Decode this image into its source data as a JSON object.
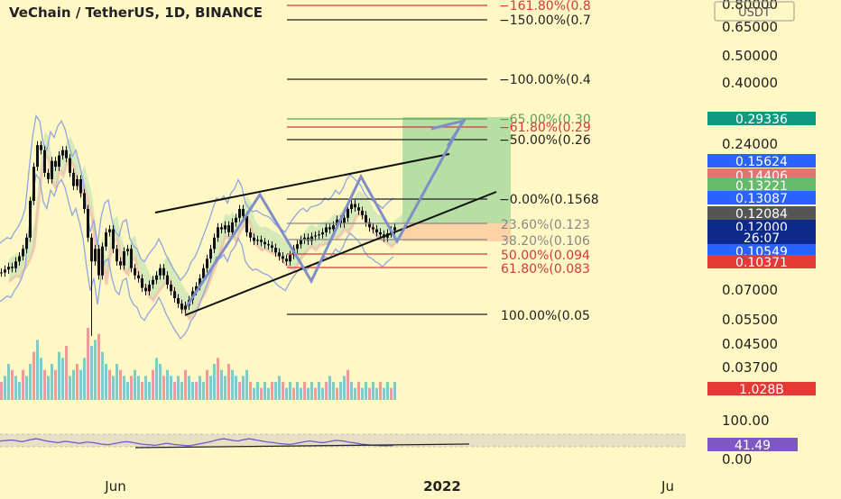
{
  "header": {
    "title": "VeChain / TetherUS, 1D, BINANCE",
    "quote_currency": "USDT"
  },
  "colors": {
    "background": "#fff8c4",
    "candle": "#111111",
    "bb": "#8fa6e0",
    "cloud_green": "#b5dfb0",
    "cloud_red": "#f2b8a8",
    "target_zone": "#9fd79a",
    "stop_zone": "#f9c79b",
    "channel": "#111111",
    "projection_arrow": "#7f8ec6",
    "fib_black": "#222222",
    "fib_red": "#d33a3a",
    "rsi_line": "#6e58c8",
    "rsi_band": "#e8e0c4"
  },
  "chart_data": {
    "type": "line",
    "price_axis_ticks": [
      "0.80000",
      "0.65000",
      "0.50000",
      "0.40000",
      "0.24000",
      "0.07000",
      "0.05500",
      "0.04500",
      "0.03700"
    ],
    "time_axis_ticks": [
      "Jun",
      "2022",
      "Ju"
    ],
    "rsi_axis_ticks": [
      "100.00",
      "0.00"
    ],
    "price_badges": [
      {
        "label": "0.29336",
        "color": "#0e9981"
      },
      {
        "label": "0.15624",
        "color": "#2962ff"
      },
      {
        "label": "0.14406",
        "color": "#e57373"
      },
      {
        "label": "0.13221",
        "color": "#66bb6a"
      },
      {
        "label": "0.13087",
        "color": "#2962ff"
      },
      {
        "label": "0.12084",
        "color": "#555555"
      },
      {
        "label": "0.12000",
        "color": "#0d2a8a"
      },
      {
        "label": "26:07",
        "color": "#0d2a8a"
      },
      {
        "label": "0.10549",
        "color": "#2962ff"
      },
      {
        "label": "0.10371",
        "color": "#e53935"
      }
    ],
    "volume_badge": {
      "label": "1.028B",
      "color": "#e53935"
    },
    "rsi_badge": {
      "label": "41.49",
      "color": "#7e57c2"
    },
    "fib_upper": [
      {
        "label": "161.80%(0.8",
        "color": "#d33a3a"
      },
      {
        "label": "150.00%(0.7",
        "color": "#222222"
      },
      {
        "label": "100.00%(0.4",
        "color": "#222222"
      },
      {
        "label": "65.00%(0.30",
        "color": "#5a9e5a"
      },
      {
        "label": "61.80%(0.29",
        "color": "#d33a3a"
      },
      {
        "label": "50.00%(0.26",
        "color": "#222222"
      },
      {
        "label": "0.00%(0.1568",
        "color": "#222222"
      }
    ],
    "fib_lower": [
      {
        "label": "23.60%(0.123",
        "color": "#888888"
      },
      {
        "label": "38.20%(0.106",
        "color": "#888888"
      },
      {
        "label": "50.00%(0.094",
        "color": "#d33a3a"
      },
      {
        "label": "61.80%(0.083",
        "color": "#d33a3a"
      },
      {
        "label": "100.00%(0.05",
        "color": "#222222"
      }
    ],
    "series": [
      {
        "x": [
          0,
          4,
          8,
          12,
          16,
          20,
          24,
          28,
          32,
          36,
          40,
          44,
          48,
          52,
          56,
          60,
          64,
          68,
          72,
          76,
          80,
          84,
          88,
          92,
          96,
          100,
          104,
          108,
          112,
          116,
          120,
          124,
          128,
          132,
          136,
          140,
          144,
          148,
          152,
          156,
          160,
          164,
          168,
          172,
          176,
          180,
          184,
          188,
          192,
          196,
          200,
          204,
          208,
          212,
          216,
          220,
          224,
          228,
          232,
          236,
          240,
          244,
          248,
          252,
          256,
          260,
          264,
          268,
          272,
          276,
          280,
          284,
          288,
          292,
          296,
          300,
          304,
          308,
          312,
          316,
          320,
          324,
          328,
          332,
          336,
          340,
          344,
          348,
          352,
          356,
          360,
          364,
          368,
          372,
          376,
          380,
          384,
          388,
          392,
          396,
          400,
          404,
          408,
          412,
          416,
          420,
          424,
          428,
          432,
          436
        ],
        "values": [
          0.082,
          0.084,
          0.086,
          0.085,
          0.09,
          0.094,
          0.1,
          0.11,
          0.15,
          0.2,
          0.24,
          0.23,
          0.19,
          0.18,
          0.21,
          0.2,
          0.22,
          0.23,
          0.215,
          0.19,
          0.17,
          0.18,
          0.16,
          0.14,
          0.11,
          0.09,
          0.1,
          0.08,
          0.102,
          0.115,
          0.118,
          0.1,
          0.09,
          0.087,
          0.098,
          0.1,
          0.085,
          0.08,
          0.078,
          0.072,
          0.07,
          0.074,
          0.077,
          0.08,
          0.085,
          0.08,
          0.074,
          0.07,
          0.066,
          0.063,
          0.06,
          0.062,
          0.065,
          0.07,
          0.073,
          0.078,
          0.085,
          0.092,
          0.1,
          0.11,
          0.12,
          0.118,
          0.122,
          0.115,
          0.125,
          0.13,
          0.14,
          0.132,
          0.115,
          0.11,
          0.107,
          0.108,
          0.106,
          0.104,
          0.103,
          0.101,
          0.097,
          0.094,
          0.092,
          0.09,
          0.095,
          0.1,
          0.104,
          0.108,
          0.11,
          0.107,
          0.111,
          0.112,
          0.113,
          0.115,
          0.12,
          0.118,
          0.122,
          0.128,
          0.124,
          0.13,
          0.14,
          0.146,
          0.142,
          0.138,
          0.133,
          0.125,
          0.12,
          0.118,
          0.115,
          0.113,
          0.11,
          0.114,
          0.117,
          0.12
        ]
      }
    ],
    "volume_values": [
      3,
      4,
      6,
      5,
      4,
      3,
      5,
      4,
      6,
      8,
      10,
      7,
      5,
      4,
      6,
      5,
      8,
      7,
      9,
      4,
      5,
      6,
      5,
      7,
      12,
      9,
      10,
      11,
      8,
      6,
      5,
      4,
      6,
      5,
      4,
      3,
      4,
      5,
      4,
      3,
      4,
      3,
      5,
      7,
      6,
      4,
      5,
      4,
      3,
      4,
      3,
      5,
      4,
      3,
      3,
      4,
      3,
      5,
      4,
      6,
      7,
      5,
      4,
      6,
      5,
      4,
      3,
      4,
      5,
      3,
      2,
      3,
      2,
      3,
      2,
      3,
      3,
      4,
      3,
      2,
      3,
      2,
      3,
      2,
      3,
      2,
      3,
      2,
      3,
      2,
      3,
      4,
      3,
      2,
      3,
      4,
      5,
      3,
      2,
      3,
      2,
      3,
      2,
      3,
      2,
      3,
      2,
      3,
      2,
      3
    ],
    "rsi_values": [
      55,
      56,
      57,
      58,
      57,
      55,
      53,
      55,
      58,
      60,
      62,
      60,
      57,
      55,
      53,
      52,
      50,
      52,
      54,
      53,
      51,
      50,
      48,
      50,
      52,
      51,
      50,
      48,
      46,
      45,
      44,
      46,
      48,
      50,
      52,
      53,
      52,
      50,
      48,
      46,
      45,
      44,
      43,
      42,
      44,
      46,
      48,
      47,
      45,
      44,
      43,
      42,
      41,
      42,
      44,
      46,
      48,
      50,
      52,
      55,
      58,
      60,
      62,
      60,
      58,
      56,
      55,
      58,
      60,
      62,
      60,
      58,
      56,
      54,
      52,
      51,
      50,
      48,
      47,
      46,
      45,
      46,
      48,
      50,
      52,
      54,
      55,
      53,
      52,
      50,
      51,
      53,
      55,
      57,
      56,
      55,
      53,
      51,
      50,
      48,
      46,
      45,
      44,
      43,
      42,
      41.5,
      41,
      41,
      41.2,
      41.49
    ]
  }
}
